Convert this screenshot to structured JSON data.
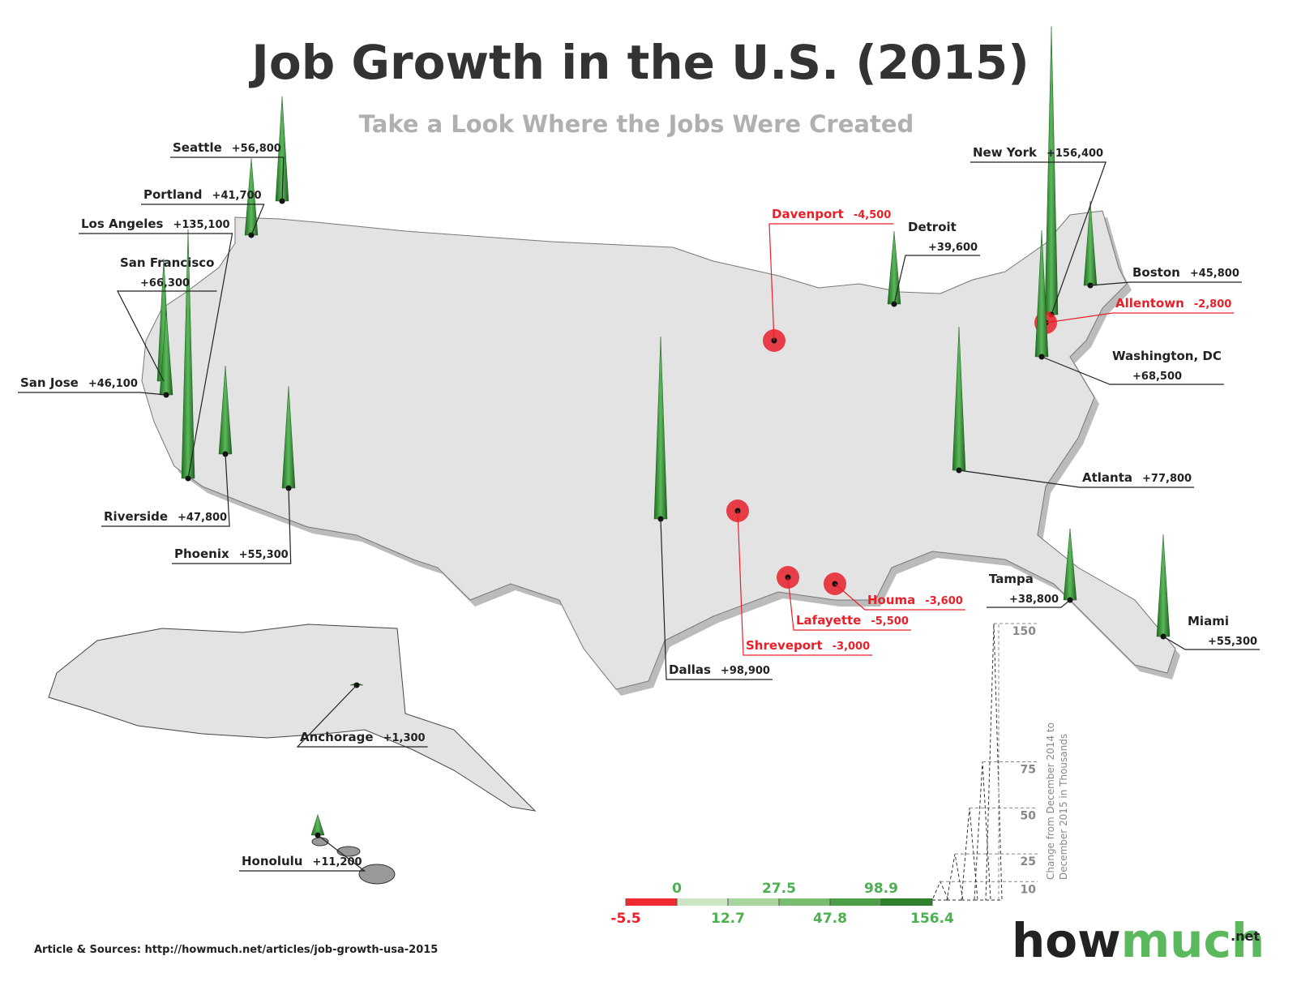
{
  "title": "Job Growth in the U.S. (2015)",
  "subtitle": "Take a Look Where the Jobs Were Created",
  "cities": [
    {
      "name": "Seattle",
      "value": 56800,
      "label": "+56,800"
    },
    {
      "name": "Portland",
      "value": 41700,
      "label": "+41,700"
    },
    {
      "name": "Los Angeles",
      "value": 135100,
      "label": "+135,100"
    },
    {
      "name": "San Francisco",
      "value": 66300,
      "label": "+66,300"
    },
    {
      "name": "San Jose",
      "value": 46100,
      "label": "+46,100"
    },
    {
      "name": "Riverside",
      "value": 47800,
      "label": "+47,800"
    },
    {
      "name": "Phoenix",
      "value": 55300,
      "label": "+55,300"
    },
    {
      "name": "Dallas",
      "value": 98900,
      "label": "+98,900"
    },
    {
      "name": "Davenport",
      "value": -4500,
      "label": "-4,500"
    },
    {
      "name": "Detroit",
      "value": 39600,
      "label": "+39,600"
    },
    {
      "name": "New York",
      "value": 156400,
      "label": "+156,400"
    },
    {
      "name": "Boston",
      "value": 45800,
      "label": "+45,800"
    },
    {
      "name": "Allentown",
      "value": -2800,
      "label": "-2,800"
    },
    {
      "name": "Washington, DC",
      "value": 68500,
      "label": "+68,500"
    },
    {
      "name": "Atlanta",
      "value": 77800,
      "label": "+77,800"
    },
    {
      "name": "Tampa",
      "value": 38800,
      "label": "+38,800"
    },
    {
      "name": "Miami",
      "value": 55300,
      "label": "+55,300"
    },
    {
      "name": "Houma",
      "value": -3600,
      "label": "-3,600"
    },
    {
      "name": "Lafayette",
      "value": -5500,
      "label": "-5,500"
    },
    {
      "name": "Shreveport",
      "value": -3000,
      "label": "-3,000"
    },
    {
      "name": "Anchorage",
      "value": 1300,
      "label": "+1,300"
    },
    {
      "name": "Honolulu",
      "value": 11200,
      "label": "+11,200"
    }
  ],
  "legend": {
    "breaks": [
      -5.5,
      0,
      12.7,
      27.5,
      47.8,
      98.9,
      156.4
    ],
    "colors": [
      "#ee2a33",
      "#cce6c4",
      "#a8d49d",
      "#7bbd70",
      "#4c9f47",
      "#2f7f2d"
    ]
  },
  "height_scale": {
    "ticks": [
      10,
      25,
      50,
      75,
      150
    ],
    "axis_label_line1": "Change from December 2014 to",
    "axis_label_line2": "December 2015 in Thousands"
  },
  "source": "Article & Sources: http://howmuch.net/articles/job-growth-usa-2015",
  "logo": {
    "part1": "how",
    "part2": "much",
    "suffix": ".net"
  }
}
